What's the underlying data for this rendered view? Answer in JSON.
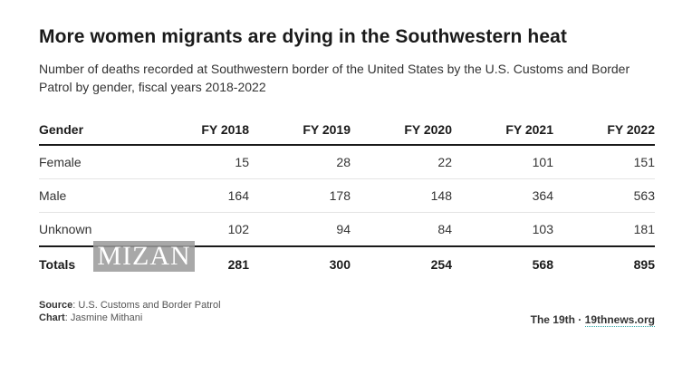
{
  "title": "More women migrants are dying in the Southwestern heat",
  "subtitle": "Number of deaths recorded at Southwestern border of the United States by the U.S. Customs and Border Patrol by gender, fiscal years 2018-2022",
  "chart_data": {
    "type": "table",
    "columns": [
      "Gender",
      "FY 2018",
      "FY 2019",
      "FY 2020",
      "FY 2021",
      "FY 2022"
    ],
    "rows": [
      {
        "label": "Female",
        "values": [
          "15",
          "28",
          "22",
          "101",
          "151"
        ]
      },
      {
        "label": "Male",
        "values": [
          "164",
          "178",
          "148",
          "364",
          "563"
        ]
      },
      {
        "label": "Unknown",
        "values": [
          "102",
          "94",
          "84",
          "103",
          "181"
        ]
      }
    ],
    "totals": {
      "label": "Totals",
      "values": [
        "281",
        "300",
        "254",
        "568",
        "895"
      ]
    }
  },
  "watermark": "MIZAN",
  "footer": {
    "source_label": "Source",
    "source_text": ": U.S. Customs and Border Patrol",
    "chart_label": "Chart",
    "chart_text": ": Jasmine Mithani",
    "brand": "The 19th",
    "separator": "·",
    "site": "19thnews.org"
  }
}
